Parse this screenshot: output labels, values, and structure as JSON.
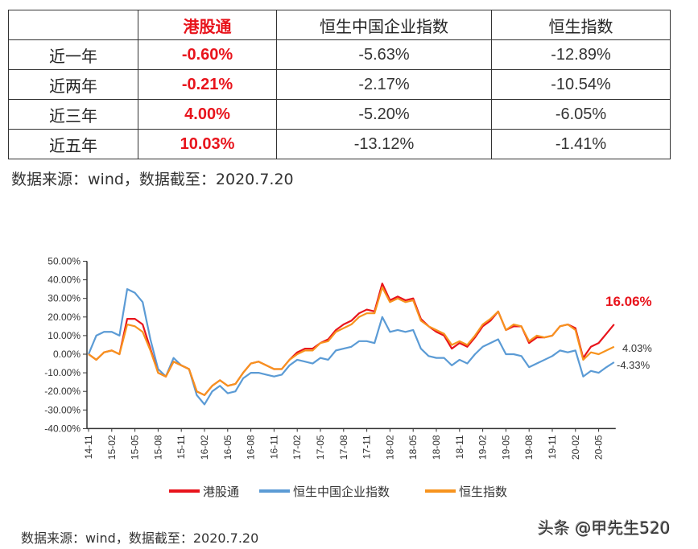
{
  "table": {
    "headers": [
      "",
      "港股通",
      "恒生中国企业指数",
      "恒生指数"
    ],
    "rows": [
      {
        "label": "近一年",
        "values": [
          "-0.60%",
          "-5.63%",
          "-12.89%"
        ]
      },
      {
        "label": "近两年",
        "values": [
          "-0.21%",
          "-2.17%",
          "-10.54%"
        ]
      },
      {
        "label": "近三年",
        "values": [
          "4.00%",
          "-5.20%",
          "-6.05%"
        ]
      },
      {
        "label": "近五年",
        "values": [
          "10.03%",
          "-13.12%",
          "-1.41%"
        ]
      }
    ]
  },
  "source_note": "数据来源：wind，数据截至：2020.7.20",
  "source_note_bottom": "数据来源：wind，数据截至：2020.7.20",
  "watermark": "头条 @甲先生520",
  "chart_data": {
    "type": "line",
    "ylim": [
      -40,
      50
    ],
    "yticks": [
      "50.00%",
      "40.00%",
      "30.00%",
      "20.00%",
      "10.00%",
      "0.00%",
      "-10.00%",
      "-20.00%",
      "-30.00%",
      "-40.00%"
    ],
    "ytick_values": [
      50,
      40,
      30,
      20,
      10,
      0,
      -10,
      -20,
      -30,
      -40
    ],
    "xticks": [
      "14-11",
      "15-02",
      "15-05",
      "15-08",
      "15-11",
      "16-02",
      "16-05",
      "16-08",
      "16-11",
      "17-02",
      "17-05",
      "17-08",
      "17-11",
      "18-02",
      "18-05",
      "18-08",
      "18-11",
      "19-02",
      "19-05",
      "19-08",
      "19-11",
      "20-02",
      "20-05"
    ],
    "x": [
      "14-11",
      "14-12",
      "15-01",
      "15-02",
      "15-03",
      "15-04",
      "15-05",
      "15-06",
      "15-07",
      "15-08",
      "15-09",
      "15-10",
      "15-11",
      "15-12",
      "16-01",
      "16-02",
      "16-03",
      "16-04",
      "16-05",
      "16-06",
      "16-07",
      "16-08",
      "16-09",
      "16-10",
      "16-11",
      "16-12",
      "17-01",
      "17-02",
      "17-03",
      "17-04",
      "17-05",
      "17-06",
      "17-07",
      "17-08",
      "17-09",
      "17-10",
      "17-11",
      "17-12",
      "18-01",
      "18-02",
      "18-03",
      "18-04",
      "18-05",
      "18-06",
      "18-07",
      "18-08",
      "18-09",
      "18-10",
      "18-11",
      "18-12",
      "19-01",
      "19-02",
      "19-03",
      "19-04",
      "19-05",
      "19-06",
      "19-07",
      "19-08",
      "19-09",
      "19-10",
      "19-11",
      "19-12",
      "20-01",
      "20-02",
      "20-03",
      "20-04",
      "20-05",
      "20-06",
      "20-07"
    ],
    "legend_position": "bottom",
    "series": [
      {
        "name": "港股通",
        "color": "#e8141c",
        "end_label": "16.06%",
        "values": [
          0,
          -3,
          1,
          2,
          0,
          19,
          19,
          16,
          3,
          -10,
          -12,
          -4,
          -6,
          -8,
          -20,
          -22,
          -17,
          -14,
          -17,
          -16,
          -10,
          -5,
          -4,
          -6,
          -8,
          -8,
          -3,
          1,
          3,
          3,
          6,
          8,
          13,
          16,
          18,
          22,
          24,
          23,
          38,
          29,
          31,
          29,
          30,
          19,
          15,
          12,
          10,
          3,
          6,
          4,
          9,
          15,
          18,
          23,
          13,
          15,
          15,
          6,
          9,
          9,
          10,
          15,
          16,
          14,
          -2,
          4,
          6,
          11,
          16.06
        ]
      },
      {
        "name": "恒生中国企业指数",
        "color": "#5b9bd5",
        "end_label": "-4.33%",
        "values": [
          0,
          10,
          12,
          12,
          10,
          35,
          33,
          28,
          8,
          -8,
          -12,
          -2,
          -6,
          -8,
          -22,
          -27,
          -20,
          -17,
          -21,
          -20,
          -13,
          -10,
          -10,
          -11,
          -12,
          -11,
          -6,
          -3,
          -4,
          -5,
          -2,
          -3,
          2,
          3,
          4,
          7,
          7,
          6,
          20,
          12,
          13,
          12,
          13,
          3,
          -1,
          -2,
          -2,
          -6,
          -3,
          -5,
          0,
          4,
          6,
          8,
          0,
          0,
          -1,
          -7,
          -5,
          -3,
          -1,
          2,
          1,
          2,
          -12,
          -9,
          -10,
          -7,
          -4.33
        ]
      },
      {
        "name": "恒生指数",
        "color": "#f7931e",
        "end_label": "4.03%",
        "values": [
          0,
          -3,
          1,
          2,
          0,
          16,
          15,
          12,
          2,
          -10,
          -12,
          -4,
          -6,
          -8,
          -20,
          -22,
          -17,
          -14,
          -17,
          -16,
          -10,
          -5,
          -4,
          -6,
          -8,
          -8,
          -3,
          0,
          2,
          2,
          6,
          7,
          12,
          14,
          16,
          20,
          22,
          22,
          36,
          28,
          30,
          28,
          29,
          18,
          15,
          13,
          11,
          5,
          7,
          5,
          10,
          16,
          19,
          23,
          13,
          16,
          15,
          7,
          10,
          9,
          10,
          15,
          16,
          13,
          -3,
          1,
          0,
          2,
          4.03
        ]
      }
    ]
  }
}
